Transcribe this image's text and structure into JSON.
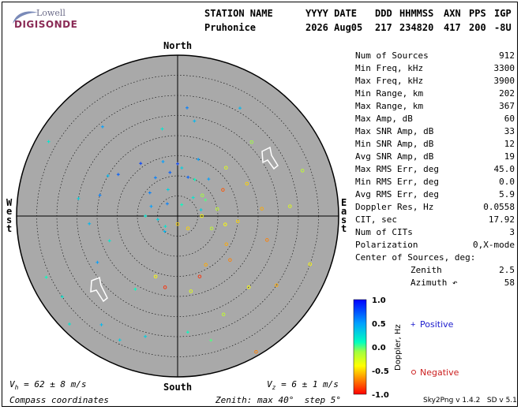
{
  "logo": {
    "top": "Lowell",
    "bottom": "DIGISONDE"
  },
  "header": {
    "station_label": "STATION NAME",
    "station_value": "Pruhonice",
    "date_label": "YYYY DATE",
    "date_value": "2026 Aug05",
    "ddd_label": "DDD",
    "ddd_value": "217",
    "time_label": "HHMMSS",
    "time_value": "234820",
    "axn_label": "AXN",
    "axn_value": "417",
    "pps_label": "PPS",
    "pps_value": "200",
    "igp_label": "IGP",
    "igp_value": "-8U"
  },
  "stats": [
    {
      "label": "Num of Sources",
      "value": "912"
    },
    {
      "label": "Min Freq, kHz",
      "value": "3300"
    },
    {
      "label": "Max Freq, kHz",
      "value": "3900"
    },
    {
      "label": "Min Range, km",
      "value": "202"
    },
    {
      "label": "Max Range, km",
      "value": "367"
    },
    {
      "label": "Max Amp, dB",
      "value": "60"
    },
    {
      "label": "Max SNR Amp, dB",
      "value": "33"
    },
    {
      "label": "Min SNR Amp, dB",
      "value": "12"
    },
    {
      "label": "Avg SNR Amp, dB",
      "value": "19"
    },
    {
      "label": "Max RMS Err, deg",
      "value": "45.0"
    },
    {
      "label": "Min RMS Err, deg",
      "value": "0.0"
    },
    {
      "label": "Avg RMS Err, deg",
      "value": "5.9"
    },
    {
      "label": "Doppler Res, Hz",
      "value": "0.0558"
    },
    {
      "label": "CIT, sec",
      "value": "17.92"
    },
    {
      "label": "Num of CITs",
      "value": "3"
    },
    {
      "label": "Polarization",
      "value": "0,X-mode"
    },
    {
      "label": "Center of Sources, deg:",
      "value": ""
    },
    {
      "label": "Zenith",
      "value": "2.5",
      "indent": true
    },
    {
      "label": "Azimuth ↶",
      "value": "58",
      "indent": true
    }
  ],
  "compass": {
    "north": "North",
    "south": "South",
    "east": "East",
    "west": "West"
  },
  "colors": {
    "disk": "#a9a9a9",
    "positive": "#1a1acd",
    "negative": "#cc2020"
  },
  "chart_data": {
    "type": "scatter",
    "projection": "polar-skymap",
    "zenith_max_deg": 40,
    "ring_step_deg": 5,
    "points_polar": [
      [
        3,
        20,
        0.1
      ],
      [
        6,
        75,
        0.3
      ],
      [
        9,
        110,
        -0.2
      ],
      [
        12,
        40,
        0.5
      ],
      [
        14,
        150,
        -0.6
      ],
      [
        16,
        200,
        -0.4
      ],
      [
        18,
        250,
        0.2
      ],
      [
        20,
        300,
        0.4
      ],
      [
        4,
        320,
        0.6
      ],
      [
        7,
        340,
        0.3
      ],
      [
        10,
        15,
        0.7
      ],
      [
        13,
        60,
        -0.8
      ],
      [
        15,
        95,
        -0.5
      ],
      [
        17,
        130,
        -0.7
      ],
      [
        19,
        170,
        -0.3
      ],
      [
        21,
        210,
        0.1
      ],
      [
        23,
        240,
        0.5
      ],
      [
        25,
        280,
        0.3
      ],
      [
        2,
        180,
        -0.5
      ],
      [
        5,
        220,
        0.4
      ],
      [
        8,
        270,
        0.2
      ],
      [
        11,
        330,
        0.6
      ],
      [
        22,
        350,
        0.2
      ],
      [
        24,
        10,
        0.4
      ],
      [
        26,
        45,
        -0.1
      ],
      [
        28,
        85,
        -0.3
      ],
      [
        30,
        125,
        -0.6
      ],
      [
        32,
        165,
        0.0
      ],
      [
        34,
        205,
        0.3
      ],
      [
        36,
        245,
        0.1
      ],
      [
        38,
        225,
        0.2
      ],
      [
        37,
        300,
        0.2
      ],
      [
        29,
        320,
        0.5
      ],
      [
        27,
        5,
        0.6
      ],
      [
        31,
        30,
        0.4
      ],
      [
        33,
        70,
        -0.2
      ],
      [
        35,
        110,
        -0.4
      ],
      [
        39,
        150,
        -0.7
      ],
      [
        18,
        190,
        -0.9
      ],
      [
        16,
        160,
        -0.9
      ],
      [
        14,
        120,
        -0.6
      ],
      [
        12,
        100,
        -0.4
      ],
      [
        10,
        80,
        -0.2
      ],
      [
        8,
        60,
        0.0
      ],
      [
        6,
        40,
        0.2
      ],
      [
        4,
        140,
        -0.5
      ],
      [
        5,
        260,
        0.3
      ],
      [
        7,
        290,
        0.5
      ],
      [
        9,
        310,
        0.6
      ],
      [
        11,
        350,
        0.7
      ],
      [
        13,
        0,
        0.8
      ],
      [
        15,
        20,
        0.5
      ],
      [
        17,
        45,
        -0.3
      ],
      [
        19,
        65,
        -0.5
      ],
      [
        21,
        85,
        -0.6
      ],
      [
        23,
        105,
        -0.7
      ],
      [
        25,
        135,
        -0.4
      ],
      [
        27,
        155,
        -0.2
      ],
      [
        29,
        175,
        0.1
      ],
      [
        31,
        195,
        0.3
      ],
      [
        33,
        215,
        0.4
      ],
      [
        35,
        235,
        0.2
      ],
      [
        22,
        265,
        0.4
      ],
      [
        20,
        285,
        0.6
      ],
      [
        18,
        305,
        0.7
      ],
      [
        16,
        325,
        0.8
      ],
      [
        14,
        345,
        0.5
      ],
      [
        12,
        5,
        0.3
      ],
      [
        10,
        25,
        0.1
      ],
      [
        8,
        50,
        -0.1
      ],
      [
        6,
        90,
        -0.4
      ],
      [
        4,
        230,
        0.2
      ]
    ],
    "legend": {
      "positive": "Positive",
      "negative": "Negative"
    },
    "colorbar": {
      "label": "Doppler, Hz",
      "ticks": [
        "1.0",
        "0.5",
        "0.0",
        "-0.5",
        "-1.0"
      ],
      "range": [
        -1.0,
        1.0
      ]
    }
  },
  "footer": {
    "vh": "= 62 ± 8 m/s",
    "vz": "= 6 ± 1 m/s",
    "coords": "Compass coordinates",
    "zenith": "Zenith: max 40°  step 5°",
    "version": "Sky2Png v 1.4.2   SD v 5.1"
  }
}
